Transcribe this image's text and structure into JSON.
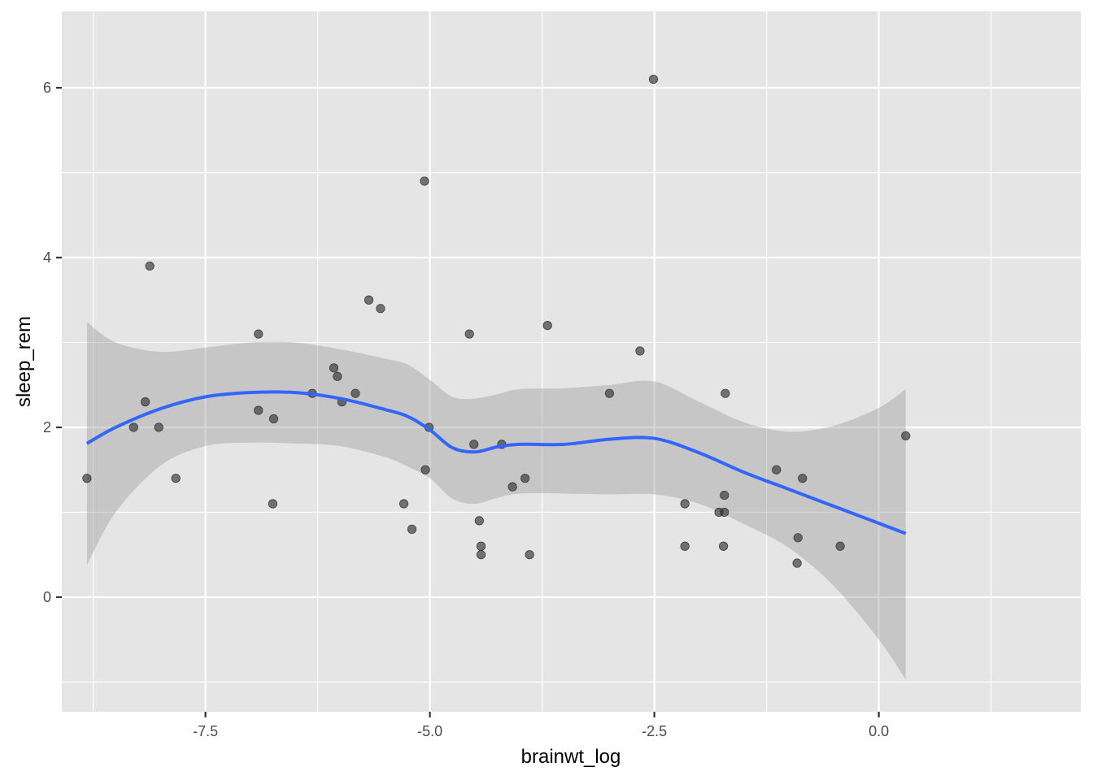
{
  "chart_data": {
    "type": "scatter",
    "title": "",
    "xlabel": "brainwt_log",
    "ylabel": "sleep_rem",
    "xlim": [
      -9.1,
      2.25
    ],
    "ylim": [
      -1.35,
      6.9
    ],
    "x_ticks": [
      -7.5,
      -5.0,
      -2.5,
      0.0
    ],
    "x_tick_labels": [
      "-7.5",
      "-5.0",
      "-2.5",
      "0.0"
    ],
    "y_ticks": [
      0,
      2,
      4,
      6
    ],
    "y_tick_labels": [
      "0",
      "2",
      "4",
      "6"
    ],
    "grid": true,
    "points": [
      {
        "x": -8.82,
        "y": 1.4
      },
      {
        "x": -8.3,
        "y": 2.0
      },
      {
        "x": -8.17,
        "y": 2.3
      },
      {
        "x": -8.12,
        "y": 3.9
      },
      {
        "x": -8.02,
        "y": 2.0
      },
      {
        "x": -7.83,
        "y": 1.4
      },
      {
        "x": -6.91,
        "y": 3.1
      },
      {
        "x": -6.91,
        "y": 2.2
      },
      {
        "x": -6.74,
        "y": 2.1
      },
      {
        "x": -6.75,
        "y": 1.1
      },
      {
        "x": -6.31,
        "y": 2.4
      },
      {
        "x": -6.07,
        "y": 2.7
      },
      {
        "x": -6.03,
        "y": 2.6
      },
      {
        "x": -5.98,
        "y": 2.3
      },
      {
        "x": -5.83,
        "y": 2.4
      },
      {
        "x": -5.68,
        "y": 3.5
      },
      {
        "x": -5.55,
        "y": 3.4
      },
      {
        "x": -5.29,
        "y": 1.1
      },
      {
        "x": -5.2,
        "y": 0.8
      },
      {
        "x": -5.06,
        "y": 4.9
      },
      {
        "x": -5.05,
        "y": 1.5
      },
      {
        "x": -5.01,
        "y": 2.0
      },
      {
        "x": -4.56,
        "y": 3.1
      },
      {
        "x": -4.51,
        "y": 1.8
      },
      {
        "x": -4.45,
        "y": 0.9
      },
      {
        "x": -4.43,
        "y": 0.6
      },
      {
        "x": -4.43,
        "y": 0.5
      },
      {
        "x": -4.2,
        "y": 1.8
      },
      {
        "x": -4.08,
        "y": 1.3
      },
      {
        "x": -3.94,
        "y": 1.4
      },
      {
        "x": -3.89,
        "y": 0.5
      },
      {
        "x": -3.69,
        "y": 3.2
      },
      {
        "x": -3.0,
        "y": 2.4
      },
      {
        "x": -2.66,
        "y": 2.9
      },
      {
        "x": -2.51,
        "y": 6.1
      },
      {
        "x": -2.16,
        "y": 1.1
      },
      {
        "x": -2.16,
        "y": 0.6
      },
      {
        "x": -1.78,
        "y": 1.0
      },
      {
        "x": -1.72,
        "y": 1.0
      },
      {
        "x": -1.73,
        "y": 0.6
      },
      {
        "x": -1.72,
        "y": 1.2
      },
      {
        "x": -1.71,
        "y": 2.4
      },
      {
        "x": -1.14,
        "y": 1.5
      },
      {
        "x": -0.9,
        "y": 0.7
      },
      {
        "x": -0.91,
        "y": 0.4
      },
      {
        "x": -0.85,
        "y": 1.4
      },
      {
        "x": -0.43,
        "y": 0.6
      },
      {
        "x": 0.3,
        "y": 1.9
      }
    ],
    "smooth": {
      "x": [
        -8.82,
        -8.5,
        -8.0,
        -7.5,
        -7.0,
        -6.5,
        -6.0,
        -5.5,
        -5.25,
        -5.0,
        -4.75,
        -4.5,
        -4.25,
        -4.0,
        -3.5,
        -3.0,
        -2.5,
        -2.0,
        -1.5,
        -1.0,
        -0.5,
        0.0,
        0.3
      ],
      "y": [
        1.81,
        2.0,
        2.22,
        2.36,
        2.41,
        2.41,
        2.34,
        2.21,
        2.13,
        1.97,
        1.76,
        1.71,
        1.77,
        1.8,
        1.8,
        1.86,
        1.87,
        1.7,
        1.47,
        1.27,
        1.07,
        0.87,
        0.75
      ],
      "lower": [
        0.38,
        1.0,
        1.55,
        1.78,
        1.82,
        1.81,
        1.78,
        1.65,
        1.54,
        1.4,
        1.16,
        1.1,
        1.17,
        1.22,
        1.22,
        1.21,
        1.21,
        1.1,
        0.86,
        0.58,
        0.13,
        -0.5,
        -0.97
      ],
      "upper": [
        3.24,
        3.0,
        2.89,
        2.94,
        3.0,
        3.0,
        2.92,
        2.81,
        2.74,
        2.56,
        2.36,
        2.34,
        2.39,
        2.45,
        2.46,
        2.5,
        2.54,
        2.3,
        2.06,
        1.95,
        2.02,
        2.23,
        2.45
      ]
    },
    "colors": {
      "panel": "#e5e5e5",
      "grid_major": "#ffffff",
      "point": "#333333",
      "smooth_line": "#3366ff",
      "ribbon": "#999999"
    }
  }
}
